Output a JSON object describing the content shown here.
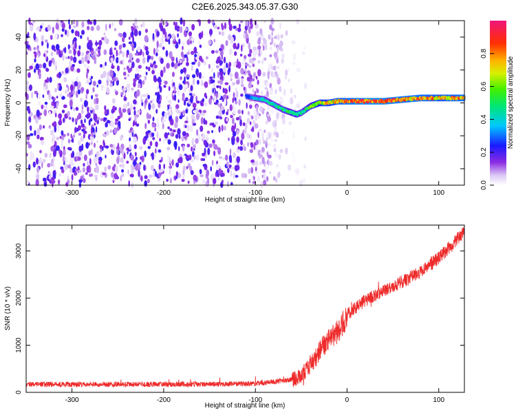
{
  "title": "C2E6.2025.343.05.37.G30",
  "chart_data": [
    {
      "type": "heatmap",
      "name": "spectrogram",
      "xlabel": "Height of straight line (km)",
      "ylabel": "Frequency (Hz)",
      "xlim": [
        -350,
        128
      ],
      "ylim": [
        -50,
        50
      ],
      "xticks": [
        -300,
        -200,
        -100,
        0,
        100
      ],
      "xtick_labels": [
        "-300",
        "-200",
        "-100",
        "0",
        "100"
      ],
      "yticks": [
        -40,
        -20,
        0,
        20,
        40
      ],
      "ytick_labels": [
        "-40",
        "-20",
        "0",
        "20",
        "40"
      ],
      "colorbar": {
        "label": "Normalized spectral amplitude",
        "range": [
          0,
          1
        ],
        "ticks": [
          0.0,
          0.2,
          0.4,
          0.6,
          0.8
        ],
        "tick_labels": [
          "0.0",
          "0.2",
          "0.4",
          "0.6",
          "0.8"
        ]
      },
      "noise_region_x": [
        -350,
        -70
      ],
      "noise_amplitude": 0.2,
      "signal_track": {
        "x": [
          -110,
          -100,
          -90,
          -80,
          -70,
          -60,
          -55,
          -50,
          -45,
          -40,
          -30,
          -20,
          -10,
          0,
          20,
          40,
          60,
          80,
          100,
          128
        ],
        "freq": [
          4,
          3,
          2,
          -1,
          -4,
          -6,
          -7,
          -6,
          -4,
          -2,
          0,
          0,
          1,
          1,
          1,
          1,
          2,
          3,
          3,
          3
        ],
        "amplitude": [
          0.25,
          0.4,
          0.45,
          0.45,
          0.5,
          0.55,
          0.55,
          0.5,
          0.55,
          0.6,
          0.7,
          0.75,
          0.8,
          0.85,
          0.9,
          0.9,
          0.85,
          0.85,
          0.8,
          0.85
        ]
      }
    },
    {
      "type": "line",
      "name": "snr",
      "xlabel": "Height of straight line (km)",
      "ylabel": "SNR (10 * v/v)",
      "xlim": [
        -350,
        128
      ],
      "ylim": [
        0,
        3550
      ],
      "xticks": [
        -300,
        -200,
        -100,
        0,
        100
      ],
      "xtick_labels": [
        "-300",
        "-200",
        "-100",
        "0",
        "100"
      ],
      "yticks": [
        0,
        1000,
        2000,
        3000
      ],
      "ytick_labels": [
        "0",
        "1000",
        "2000",
        "3000"
      ],
      "color": "#ee2a2a",
      "series": [
        {
          "name": "SNR",
          "x": [
            -350,
            -300,
            -250,
            -200,
            -150,
            -100,
            -80,
            -65,
            -55,
            -45,
            -40,
            -35,
            -30,
            -25,
            -20,
            -15,
            -10,
            -5,
            0,
            10,
            20,
            30,
            40,
            50,
            60,
            70,
            80,
            90,
            100,
            110,
            120,
            128
          ],
          "y": [
            170,
            170,
            170,
            170,
            170,
            190,
            220,
            260,
            300,
            450,
            600,
            700,
            900,
            1000,
            1100,
            1200,
            1300,
            1450,
            1650,
            1800,
            1950,
            2050,
            2150,
            2250,
            2350,
            2450,
            2550,
            2700,
            2850,
            3050,
            3250,
            3400
          ]
        }
      ]
    }
  ]
}
